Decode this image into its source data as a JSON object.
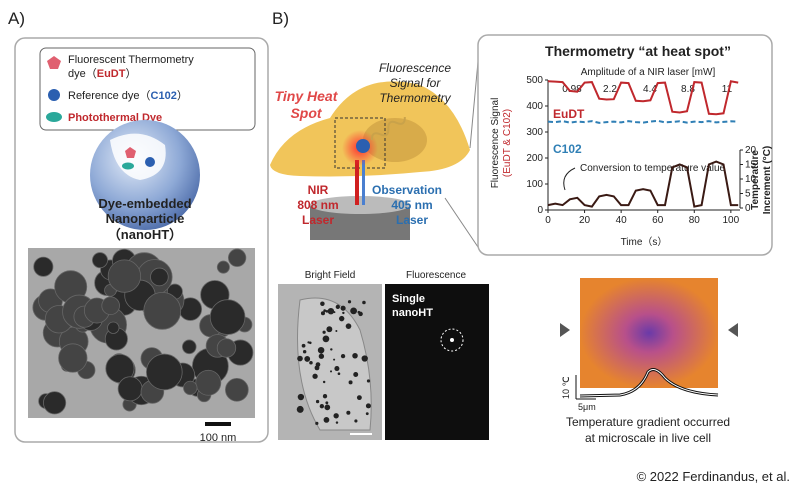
{
  "panel_a": {
    "label": "A)",
    "legend": {
      "item1_line1": "Fluorescent Thermometry",
      "item1_line2_pre": "dye（",
      "item1_line2_name": "EuDT",
      "item1_line2_post": "）",
      "item2_pre": "Reference dye（",
      "item2_name": "C102",
      "item2_post": "）",
      "item3": "Photothermal Dye"
    },
    "particle_caption": [
      "Dye-embedded",
      "Nanoparticle",
      "（nanoHT）"
    ],
    "scale_bar": "100 nm"
  },
  "panel_b": {
    "label": "B)",
    "diagram": {
      "heat_spot": [
        "Tiny Heat",
        "Spot"
      ],
      "signal": [
        "Fluorescence",
        "Signal for",
        "Thermometry"
      ],
      "nir": [
        "NIR",
        "808 nm",
        "Laser"
      ],
      "observation": [
        "Observation",
        "405 nm",
        "Laser"
      ]
    },
    "chart": {
      "type": "line",
      "title": "Thermometry “at heat spot”",
      "amplitude_title": "Amplitude of a NIR laser [mW]",
      "amplitudes": [
        "0.98",
        "2.2",
        "4.4",
        "8.8",
        "11"
      ],
      "ylabel": [
        "Fluorescence  Signal",
        "(EuDT & C102)"
      ],
      "y2label": [
        "Temperature",
        "Increment (°C)"
      ],
      "xlabel": "Time（s）",
      "annotation": "Conversion to temperature value",
      "x": [
        0,
        4,
        8,
        12,
        16,
        20,
        24,
        28,
        32,
        36,
        40,
        44,
        48,
        52,
        56,
        60,
        64,
        68,
        72,
        76,
        80,
        84,
        88,
        92,
        96,
        100,
        104
      ],
      "xlim": [
        0,
        105
      ],
      "xticks": [
        0,
        20,
        40,
        60,
        80,
        100
      ],
      "ylim": [
        0,
        500
      ],
      "yticks": [
        0,
        100,
        200,
        300,
        400,
        500
      ],
      "y2lim": [
        0,
        20
      ],
      "y2ticks": [
        0,
        5,
        10,
        15,
        20
      ],
      "series": [
        {
          "name": "EuDT",
          "color": "#c0282d",
          "values": [
            495,
            494,
            492,
            458,
            455,
            490,
            492,
            428,
            425,
            426,
            490,
            488,
            420,
            418,
            422,
            488,
            490,
            378,
            375,
            380,
            492,
            490,
            370,
            368,
            372,
            495,
            490
          ]
        },
        {
          "name": "C102",
          "color": "#2f7fb5",
          "values": [
            340,
            338,
            342,
            336,
            340,
            338,
            342,
            335,
            338,
            340,
            337,
            342,
            338,
            336,
            340,
            343,
            337,
            339,
            341,
            336,
            340,
            338,
            342,
            337,
            339,
            341,
            340
          ]
        },
        {
          "name": "Temperature",
          "color": "#3a1a14",
          "axis": "y2",
          "values": [
            1,
            1.5,
            1,
            3,
            3.5,
            1,
            0.5,
            4,
            4.5,
            4,
            1,
            1,
            6,
            6.5,
            6,
            1,
            1,
            14,
            15,
            14,
            0.5,
            1,
            15,
            16,
            15,
            1,
            1
          ]
        }
      ]
    },
    "images": {
      "bright_field": "Bright Field",
      "fluorescence": "Fluorescence",
      "single": [
        "Single",
        "nanoHT"
      ]
    },
    "gradient": {
      "temp_scale": "10 ℃",
      "length_scale": "5μm",
      "caption": [
        "Temperature gradient occurred",
        "at microscale in live cell"
      ]
    }
  },
  "copyright": "© 2022 Ferdinandus, et al."
}
